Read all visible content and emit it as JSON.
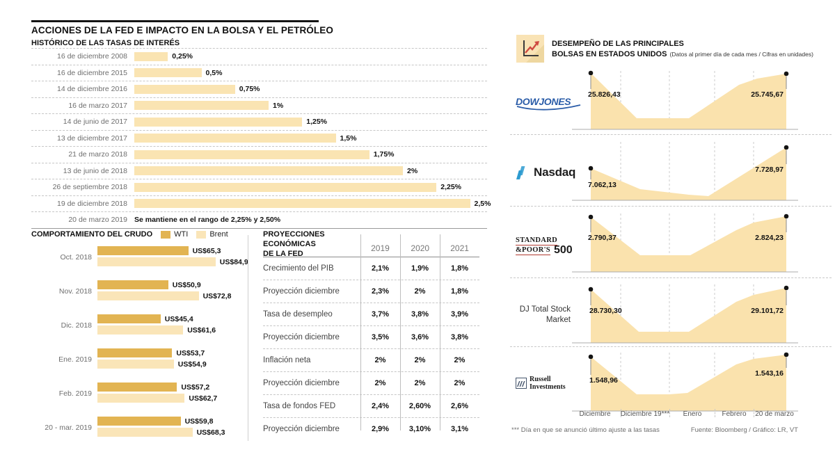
{
  "left": {
    "title": "ACCIONES DE LA FED E IMPACTO EN LA BOLSA Y EL PETRÓLEO",
    "rates_title": "HISTÓRICO DE LAS TASAS DE INTERÉS",
    "rates": [
      {
        "date": "16 de diciembre 2008",
        "pct": 0.25,
        "label": "0,25%"
      },
      {
        "date": "16 de diciembre 2015",
        "pct": 0.5,
        "label": "0,5%"
      },
      {
        "date": "14 de diciembre 2016",
        "pct": 0.75,
        "label": "0,75%"
      },
      {
        "date": "16 de marzo 2017",
        "pct": 1,
        "label": "1%"
      },
      {
        "date": "14 de junio de 2017",
        "pct": 1.25,
        "label": "1,25%"
      },
      {
        "date": "13 de diciembre 2017",
        "pct": 1.5,
        "label": "1,5%"
      },
      {
        "date": "21 de marzo 2018",
        "pct": 1.75,
        "label": "1,75%"
      },
      {
        "date": "13 de junio de 2018",
        "pct": 2,
        "label": "2%"
      },
      {
        "date": "26 de septiembre 2018",
        "pct": 2.25,
        "label": "2,25%"
      },
      {
        "date": "19 de diciembre 2018",
        "pct": 2.5,
        "label": "2,5%"
      },
      {
        "date": "20 de marzo 2019",
        "note": "Se mantiene en el rango de 2,25% y 2,50%"
      }
    ],
    "crude": {
      "title": "COMPORTAMIENTO DEL CRUDO",
      "legend": [
        {
          "name": "WTI",
          "color": "#e2b452"
        },
        {
          "name": "Brent",
          "color": "#fae5b8"
        }
      ],
      "groups": [
        {
          "month": "Oct. 2018",
          "wti": 65.3,
          "wti_label": "US$65,3",
          "brent": 84.9,
          "brent_label": "US$84,9"
        },
        {
          "month": "Nov. 2018",
          "wti": 50.9,
          "wti_label": "US$50,9",
          "brent": 72.8,
          "brent_label": "US$72,8"
        },
        {
          "month": "Dic. 2018",
          "wti": 45.4,
          "wti_label": "US$45,4",
          "brent": 61.6,
          "brent_label": "US$61,6"
        },
        {
          "month": "Ene. 2019",
          "wti": 53.7,
          "wti_label": "US$53,7",
          "brent": 54.9,
          "brent_label": "US$54,9"
        },
        {
          "month": "Feb. 2019",
          "wti": 57.2,
          "wti_label": "US$57,2",
          "brent": 62.7,
          "brent_label": "US$62,7"
        },
        {
          "month": "20 - mar. 2019",
          "wti": 59.8,
          "wti_label": "US$59,8",
          "brent": 68.3,
          "brent_label": "US$68,3"
        }
      ]
    },
    "fed_table": {
      "title_line1": "PROYECCIONES ECONÓMICAS",
      "title_line2": "DE LA FED",
      "years": [
        "2019",
        "2020",
        "2021"
      ],
      "rows": [
        {
          "label": "Crecimiento del PIB",
          "values": [
            "2,1%",
            "1,9%",
            "1,8%"
          ]
        },
        {
          "label": "Proyección diciembre",
          "values": [
            "2,3%",
            "2%",
            "1,8%"
          ]
        },
        {
          "label": "Tasa de desempleo",
          "values": [
            "3,7%",
            "3,8%",
            "3,9%"
          ]
        },
        {
          "label": "Proyección diciembre",
          "values": [
            "3,5%",
            "3,6%",
            "3,8%"
          ]
        },
        {
          "label": "Inflación neta",
          "values": [
            "2%",
            "2%",
            "2%"
          ]
        },
        {
          "label": "Proyección diciembre",
          "values": [
            "2%",
            "2%",
            "2%"
          ]
        },
        {
          "label": "Tasa de fondos FED",
          "values": [
            "2,4%",
            "2,60%",
            "2,6%"
          ]
        },
        {
          "label": "Proyección diciembre",
          "values": [
            "2,9%",
            "3,10%",
            "3,1%"
          ]
        }
      ]
    }
  },
  "right": {
    "title_line1": "DESEMPEÑO DE LAS PRINCIPALES",
    "title_line2": "BOLSAS EN ESTADOS UNIDOS",
    "subtitle": "(Datos al primer día de cada mes /  Cifras en unidades)",
    "stocks": [
      {
        "name": "Dow Jones",
        "logo_text": "DOWJONES",
        "start": "25.826,43",
        "end": "25.745,67"
      },
      {
        "name": "Nasdaq",
        "logo_text": "Nasdaq",
        "start": "7.062,13",
        "end": "7.728,97"
      },
      {
        "name": "Standard & Poor's 500",
        "logo_line1": "STANDARD",
        "logo_line2": "&POOR'S",
        "logo_500": "500",
        "start": "2.790,37",
        "end": "2.824,23"
      },
      {
        "name": "DJ Total Stock Market",
        "logo_line1": "DJ Total Stock",
        "logo_line2": "Market",
        "start": "28.730,30",
        "end": "29.101,72"
      },
      {
        "name": "Russell Investments",
        "logo_line1": "Russell",
        "logo_line2": "Investments",
        "start": "1.548,96",
        "end": "1.543,16"
      }
    ],
    "x_labels": [
      "Diciembre",
      "Diciembre 19***",
      "Enero",
      "Febrero",
      "20 de marzo"
    ],
    "footnote": "*** Día en que se anunció último ajuste a las tasas",
    "source": "Fuente: Bloomberg / Gráfico: LR, VT"
  },
  "chart_data": [
    {
      "type": "bar",
      "orientation": "horizontal",
      "title": "HISTÓRICO DE LAS TASAS DE INTERÉS",
      "unit": "%",
      "categories": [
        "16 de diciembre 2008",
        "16 de diciembre 2015",
        "14 de diciembre 2016",
        "16 de marzo 2017",
        "14 de junio de 2017",
        "13 de diciembre 2017",
        "21 de marzo 2018",
        "13 de junio de 2018",
        "26 de septiembre 2018",
        "19 de diciembre 2018"
      ],
      "values": [
        0.25,
        0.5,
        0.75,
        1,
        1.25,
        1.5,
        1.75,
        2,
        2.25,
        2.5
      ],
      "annotation": "20 de marzo 2019: Se mantiene en el rango de 2,25% y 2,50%"
    },
    {
      "type": "bar",
      "orientation": "horizontal",
      "title": "COMPORTAMIENTO DEL CRUDO",
      "unit": "US$",
      "categories": [
        "Oct. 2018",
        "Nov. 2018",
        "Dic. 2018",
        "Ene. 2019",
        "Feb. 2019",
        "20 - mar. 2019"
      ],
      "series": [
        {
          "name": "WTI",
          "values": [
            65.3,
            50.9,
            45.4,
            53.7,
            57.2,
            59.8
          ]
        },
        {
          "name": "Brent",
          "values": [
            84.9,
            72.8,
            61.6,
            54.9,
            62.7,
            68.3
          ]
        }
      ]
    },
    {
      "type": "table",
      "title": "PROYECCIONES ECONÓMICAS DE LA FED",
      "columns": [
        "2019",
        "2020",
        "2021"
      ],
      "rows": [
        {
          "label": "Crecimiento del PIB",
          "values": [
            "2,1%",
            "1,9%",
            "1,8%"
          ]
        },
        {
          "label": "Proyección diciembre",
          "values": [
            "2,3%",
            "2%",
            "1,8%"
          ]
        },
        {
          "label": "Tasa de desempleo",
          "values": [
            "3,7%",
            "3,8%",
            "3,9%"
          ]
        },
        {
          "label": "Proyección diciembre",
          "values": [
            "3,5%",
            "3,6%",
            "3,8%"
          ]
        },
        {
          "label": "Inflación neta",
          "values": [
            "2%",
            "2%",
            "2%"
          ]
        },
        {
          "label": "Proyección diciembre",
          "values": [
            "2%",
            "2%",
            "2%"
          ]
        },
        {
          "label": "Tasa de fondos FED",
          "values": [
            "2,4%",
            "2,60%",
            "2,6%"
          ]
        },
        {
          "label": "Proyección diciembre",
          "values": [
            "2,9%",
            "3,10%",
            "3,1%"
          ]
        }
      ]
    },
    {
      "type": "area",
      "title": "DESEMPEÑO DE LAS PRINCIPALES BOLSAS EN ESTADOS UNIDOS",
      "x": [
        "Diciembre",
        "Diciembre 19***",
        "Enero",
        "Febrero",
        "20 de marzo"
      ],
      "series": [
        {
          "name": "Dow Jones",
          "start": 25826.43,
          "end": 25745.67
        },
        {
          "name": "Nasdaq",
          "start": 7062.13,
          "end": 7728.97
        },
        {
          "name": "Standard & Poor's 500",
          "start": 2790.37,
          "end": 2824.23
        },
        {
          "name": "DJ Total Stock Market",
          "start": 28730.3,
          "end": 29101.72
        },
        {
          "name": "Russell Investments",
          "start": 1548.96,
          "end": 1543.16
        }
      ]
    }
  ]
}
